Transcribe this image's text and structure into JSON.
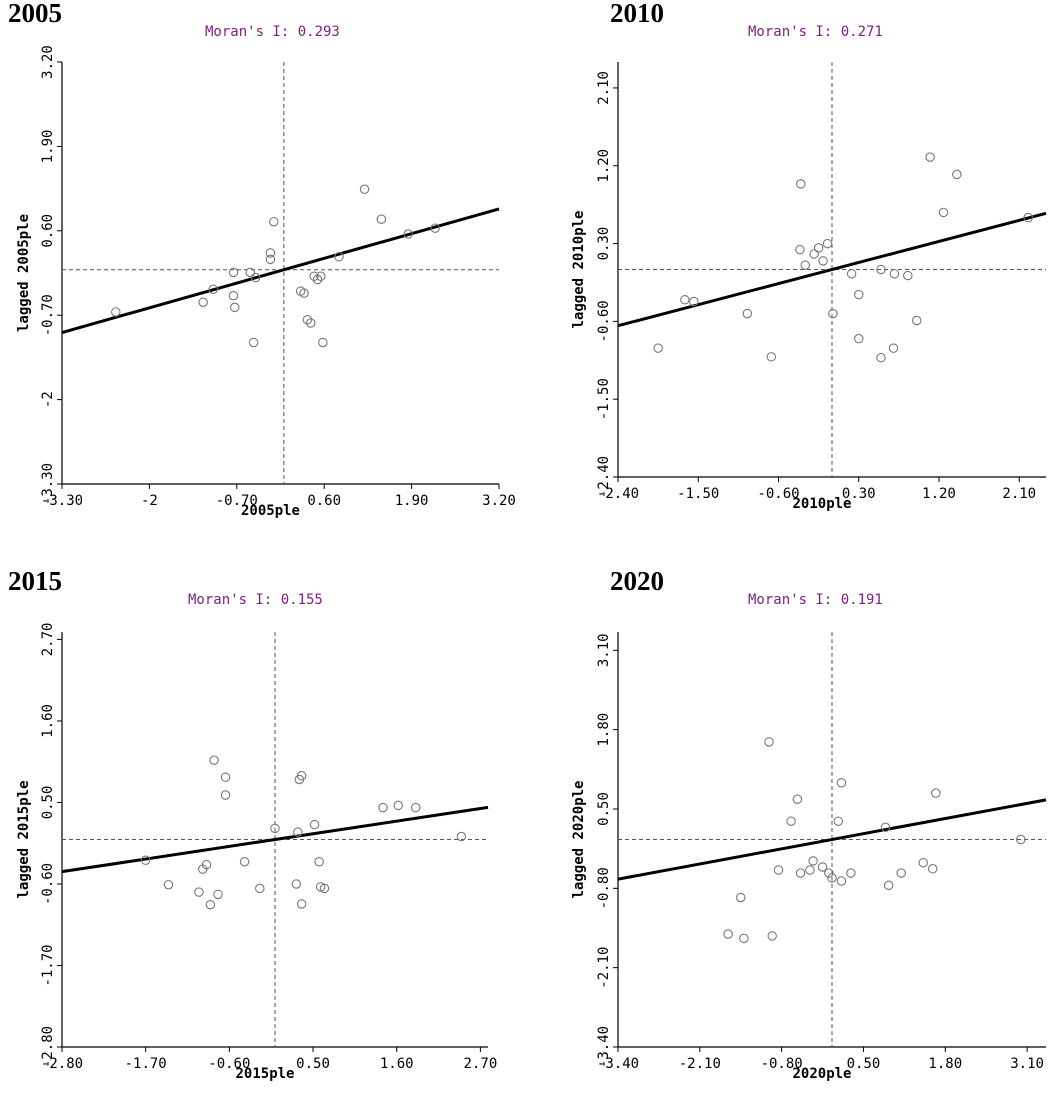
{
  "chart_data": [
    {
      "type": "scatter",
      "year": "2005",
      "title": "Moran's I: 0.293",
      "xlabel": "2005ple",
      "ylabel": "lagged 2005ple",
      "xlim": [
        -3.3,
        3.2
      ],
      "ylim": [
        -3.3,
        3.2
      ],
      "xticks": [
        "-3.30",
        "-2",
        "-0.70",
        "0.60",
        "1.90",
        "3.20"
      ],
      "yticks": [
        "-3.30",
        "-2",
        "-0.70",
        "0.60",
        "1.90",
        "3.20"
      ],
      "mean": [
        0,
        0
      ],
      "slope": 0.293,
      "points": [
        [
          -2.5,
          -0.65
        ],
        [
          -1.2,
          -0.5
        ],
        [
          -1.05,
          -0.3
        ],
        [
          -0.75,
          -0.4
        ],
        [
          -0.73,
          -0.58
        ],
        [
          -0.75,
          -0.04
        ],
        [
          -0.45,
          -1.12
        ],
        [
          -0.5,
          -0.04
        ],
        [
          -0.42,
          -0.12
        ],
        [
          -0.2,
          0.16
        ],
        [
          -0.2,
          0.26
        ],
        [
          -0.15,
          0.74
        ],
        [
          0.25,
          -0.33
        ],
        [
          0.3,
          -0.36
        ],
        [
          0.35,
          -0.77
        ],
        [
          0.4,
          -0.82
        ],
        [
          0.45,
          -0.1
        ],
        [
          0.5,
          -0.15
        ],
        [
          0.55,
          -0.1
        ],
        [
          0.58,
          -1.12
        ],
        [
          0.82,
          0.2
        ],
        [
          1.2,
          1.24
        ],
        [
          1.45,
          0.78
        ],
        [
          1.85,
          0.55
        ],
        [
          2.25,
          0.64
        ]
      ]
    },
    {
      "type": "scatter",
      "year": "2010",
      "title": "Moran's I: 0.271",
      "xlabel": "2010ple",
      "ylabel": "lagged 2010ple",
      "xlim": [
        -2.4,
        2.4
      ],
      "ylim": [
        -2.4,
        2.4
      ],
      "xticks": [
        "-2.40",
        "-1.50",
        "-0.60",
        "0.30",
        "1.20",
        "2.10"
      ],
      "yticks": [
        "-2.40",
        "-1.50",
        "-0.60",
        "0.30",
        "1.20",
        "2.10"
      ],
      "mean": [
        0,
        0
      ],
      "slope": 0.271,
      "points": [
        [
          -1.95,
          -0.91
        ],
        [
          -1.65,
          -0.35
        ],
        [
          -1.55,
          -0.37
        ],
        [
          -0.95,
          -0.51
        ],
        [
          -0.68,
          -1.01
        ],
        [
          -0.36,
          0.23
        ],
        [
          -0.3,
          0.05
        ],
        [
          -0.2,
          0.18
        ],
        [
          -0.15,
          0.25
        ],
        [
          -0.1,
          0.1
        ],
        [
          -0.35,
          0.99
        ],
        [
          -0.05,
          0.3
        ],
        [
          0.01,
          -0.51
        ],
        [
          0.22,
          -0.05
        ],
        [
          0.3,
          -0.29
        ],
        [
          0.3,
          -0.8
        ],
        [
          0.55,
          0.0
        ],
        [
          0.55,
          -1.02
        ],
        [
          0.69,
          -0.91
        ],
        [
          0.7,
          -0.05
        ],
        [
          0.85,
          -0.07
        ],
        [
          0.95,
          -0.59
        ],
        [
          1.1,
          1.3
        ],
        [
          1.25,
          0.66
        ],
        [
          1.4,
          1.1
        ],
        [
          2.2,
          0.6
        ]
      ]
    },
    {
      "type": "scatter",
      "year": "2015",
      "title": "Moran's I: 0.155",
      "xlabel": "2015ple",
      "ylabel": "lagged 2015ple",
      "xlim": [
        -2.8,
        2.8
      ],
      "ylim": [
        -2.8,
        2.8
      ],
      "xticks": [
        "-2.80",
        "-1.70",
        "-0.60",
        "0.50",
        "1.60",
        "2.70"
      ],
      "yticks": [
        "-2.80",
        "-1.70",
        "-0.60",
        "0.50",
        "1.60",
        "2.70"
      ],
      "mean": [
        0,
        0
      ],
      "slope": 0.155,
      "points": [
        [
          -1.7,
          -0.28
        ],
        [
          -1.4,
          -0.61
        ],
        [
          -1.0,
          -0.71
        ],
        [
          -0.95,
          -0.4
        ],
        [
          -0.9,
          -0.34
        ],
        [
          -0.85,
          -0.88
        ],
        [
          -0.75,
          -0.74
        ],
        [
          -0.8,
          1.07
        ],
        [
          -0.65,
          0.84
        ],
        [
          -0.65,
          0.6
        ],
        [
          -0.4,
          -0.3
        ],
        [
          -0.2,
          -0.66
        ],
        [
          0.0,
          0.15
        ],
        [
          0.28,
          -0.6
        ],
        [
          0.3,
          0.1
        ],
        [
          0.32,
          0.81
        ],
        [
          0.35,
          0.86
        ],
        [
          0.35,
          -0.87
        ],
        [
          0.52,
          0.2
        ],
        [
          0.58,
          -0.3
        ],
        [
          0.6,
          -0.64
        ],
        [
          0.65,
          -0.66
        ],
        [
          1.42,
          0.43
        ],
        [
          1.62,
          0.46
        ],
        [
          1.85,
          0.43
        ],
        [
          2.45,
          0.04
        ]
      ]
    },
    {
      "type": "scatter",
      "year": "2020",
      "title": "Moran's I: 0.191",
      "xlabel": "2020ple",
      "ylabel": "lagged 2020ple",
      "xlim": [
        -3.4,
        3.4
      ],
      "ylim": [
        -3.4,
        3.4
      ],
      "xticks": [
        "-3.40",
        "-2.10",
        "-0.80",
        "0.50",
        "1.80",
        "3.10"
      ],
      "yticks": [
        "-3.40",
        "-2.10",
        "-0.80",
        "0.50",
        "1.80",
        "3.10"
      ],
      "mean": [
        0,
        0
      ],
      "slope": 0.191,
      "points": [
        [
          -1.65,
          -1.55
        ],
        [
          -1.45,
          -0.95
        ],
        [
          -1.4,
          -1.62
        ],
        [
          -1.0,
          1.6
        ],
        [
          -0.95,
          -1.58
        ],
        [
          -0.85,
          -0.5
        ],
        [
          -0.65,
          0.3
        ],
        [
          -0.55,
          0.66
        ],
        [
          -0.5,
          -0.55
        ],
        [
          -0.35,
          -0.5
        ],
        [
          -0.3,
          -0.35
        ],
        [
          -0.15,
          -0.45
        ],
        [
          -0.05,
          -0.55
        ],
        [
          0.0,
          -0.63
        ],
        [
          0.1,
          0.3
        ],
        [
          0.15,
          -0.68
        ],
        [
          0.15,
          0.93
        ],
        [
          0.3,
          -0.55
        ],
        [
          0.85,
          0.2
        ],
        [
          0.9,
          -0.75
        ],
        [
          1.1,
          -0.55
        ],
        [
          1.45,
          -0.38
        ],
        [
          1.6,
          -0.48
        ],
        [
          1.65,
          0.76
        ],
        [
          3.0,
          0.0
        ]
      ]
    }
  ]
}
